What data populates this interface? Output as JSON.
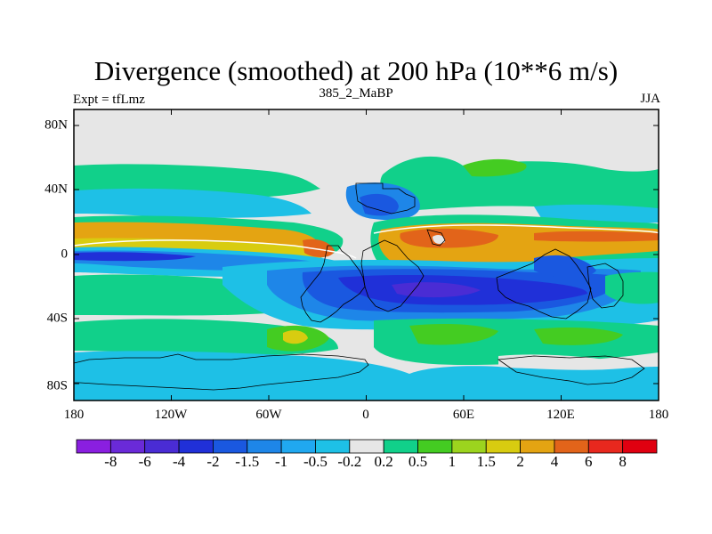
{
  "title": "Divergence (smoothed) at 200 hPa (10**6 m/s)",
  "subtitle_left": "Expt = tfLmz",
  "subtitle_center": "385_2_MaBP",
  "subtitle_right": "JJA",
  "lat_labels": [
    "80N",
    "40N",
    "0",
    "40S",
    "80S"
  ],
  "lon_labels": [
    "180",
    "120W",
    "60W",
    "0",
    "60E",
    "120E",
    "180"
  ],
  "colorbar": {
    "levels": [
      "-8",
      "-6",
      "-4",
      "-2",
      "-1.5",
      "-1",
      "-0.5",
      "-0.2",
      "0.2",
      "0.5",
      "1",
      "1.5",
      "2",
      "4",
      "6",
      "8"
    ],
    "colors": [
      "#8a1fe0",
      "#6a2ad8",
      "#4a2cd4",
      "#2030d8",
      "#1a58e0",
      "#1e86e8",
      "#20a8f0",
      "#1ec0e6",
      "#e6e6e6",
      "#11d08a",
      "#44cc22",
      "#9cd41e",
      "#d8cc10",
      "#e4a412",
      "#e2641a",
      "#e8281e",
      "#e00010"
    ]
  },
  "map": {
    "background_color": "#e6e6e6",
    "zonal_bands": [
      {
        "lat_range": [
          40,
          52
        ],
        "class": "0.2 to 1"
      },
      {
        "lat_range": [
          8,
          22
        ],
        "class": "2 to 6"
      },
      {
        "lat_range": [
          -6,
          4
        ],
        "class": "-2 to -0.5"
      },
      {
        "lat_range": [
          -40,
          -16
        ],
        "class": "-4 to -1"
      },
      {
        "lat_range": [
          -60,
          -46
        ],
        "class": "0.2 to 1.5"
      },
      {
        "lat_range": [
          -80,
          -64
        ],
        "class": "-1 to -0.2"
      }
    ]
  }
}
